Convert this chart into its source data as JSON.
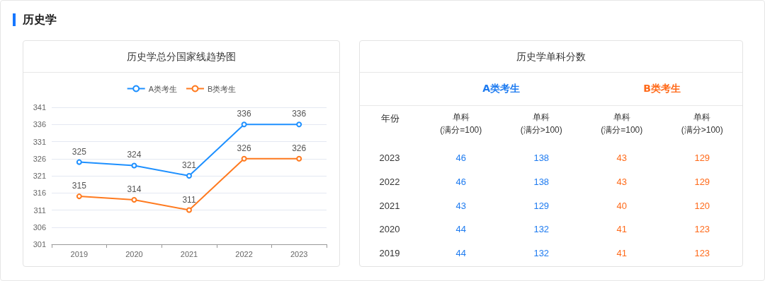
{
  "chart_data": [
    {
      "type": "other",
      "title": "历史学"
    },
    {
      "type": "line",
      "title": "历史学总分国家线趋势图",
      "categories": [
        "2019",
        "2020",
        "2021",
        "2022",
        "2023"
      ],
      "series": [
        {
          "name": "A类考生",
          "color": "#1e90ff",
          "values": [
            325,
            324,
            321,
            336,
            336
          ]
        },
        {
          "name": "B类考生",
          "color": "#ff7a1f",
          "values": [
            315,
            314,
            311,
            326,
            326
          ]
        }
      ],
      "ylim": [
        301,
        341
      ],
      "yticks": [
        301,
        306,
        311,
        316,
        321,
        326,
        331,
        336,
        341
      ],
      "grid": "y",
      "legend": "top",
      "marker": "circle",
      "line_style": "solid",
      "data_labels": true
    },
    {
      "type": "heatmap",
      "title": "历史学单科分数",
      "ylabel": "年份",
      "categories": [
        "单科\n(满分=100)",
        "单科\n(满分>100)",
        "单科\n(满分=100)",
        "单科\n(满分>100)"
      ],
      "y_categories": [
        "2023",
        "2022",
        "2021",
        "2020",
        "2019"
      ],
      "annotations": [
        "A类考生",
        "B类考生"
      ],
      "data_labels": true,
      "colors": [
        "#1e7bf0",
        "#1e7bf0",
        "#ff6a1a",
        "#ff6a1a"
      ],
      "cells": [
        [
          46,
          138,
          43,
          129
        ],
        [
          46,
          138,
          43,
          129
        ],
        [
          43,
          129,
          40,
          120
        ],
        [
          44,
          132,
          41,
          123
        ],
        [
          44,
          132,
          41,
          123
        ]
      ]
    }
  ]
}
